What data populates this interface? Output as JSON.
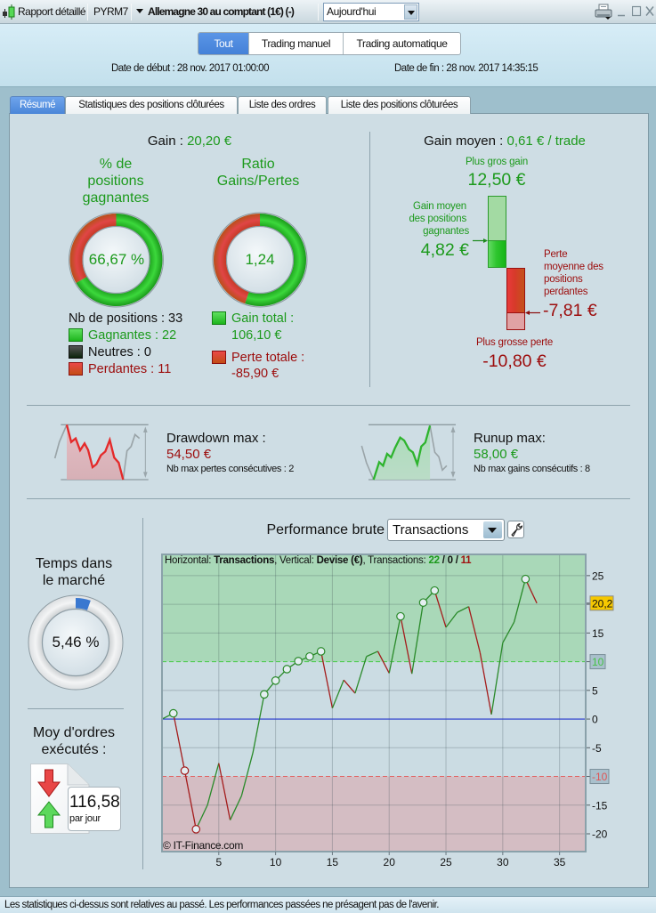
{
  "window": {
    "title": "Rapport détaillé",
    "account": "PYRM7",
    "instrument": "Allemagne 30 au comptant (1€) (-)",
    "period": "Aujourd'hui"
  },
  "filters": {
    "options": [
      "Tout",
      "Trading manuel",
      "Trading automatique"
    ],
    "selected": "Tout"
  },
  "dates": {
    "start_label": "Date de début :",
    "start_value": "28 nov. 2017 01:00:00",
    "end_label": "Date de fin :",
    "end_value": "28 nov. 2017 14:35:15"
  },
  "tabs": [
    {
      "label": "Résumé",
      "active": true
    },
    {
      "label": "Statistiques des positions clôturées",
      "active": false
    },
    {
      "label": "Liste des ordres",
      "active": false
    },
    {
      "label": "Liste des positions clôturées",
      "active": false
    }
  ],
  "gain": {
    "label": "Gain :",
    "value": "20,20 €"
  },
  "win_rate": {
    "title_lines": [
      "% de",
      "positions",
      "gagnantes"
    ],
    "value": "66,67 %",
    "fraction": 0.6667
  },
  "ratio": {
    "title_lines": [
      "Ratio",
      "Gains/Pertes"
    ],
    "value": "1,24",
    "gain_share": 0.5526
  },
  "positions": {
    "total_label": "Nb de positions :",
    "total": "33",
    "winners_label": "Gagnantes :",
    "winners": "22",
    "neutral_label": "Neutres :",
    "neutral": "0",
    "losers_label": "Perdantes :",
    "losers": "11"
  },
  "totals": {
    "gain_label": "Gain total :",
    "gain_value": "106,10 €",
    "loss_label": "Perte totale :",
    "loss_value": "-85,90 €"
  },
  "average": {
    "label": "Gain moyen :",
    "value": "0,61 € / trade",
    "max_gain_label": "Plus gros gain",
    "max_gain_text": "12,50 €",
    "max_gain": 12.5,
    "avg_gain_lines": [
      "Gain moyen",
      "des positions",
      "gagnantes"
    ],
    "avg_gain_text": "4,82 €",
    "avg_gain": 4.82,
    "avg_loss_lines": [
      "Perte",
      "moyenne des",
      "positions",
      "perdantes"
    ],
    "avg_loss_text": "-7,81 €",
    "avg_loss": -7.81,
    "max_loss_label": "Plus grosse perte",
    "max_loss_text": "-10,80 €",
    "max_loss": -10.8
  },
  "drawdown": {
    "label": "Drawdown max :",
    "value": "54,50 €",
    "detail": "Nb max pertes consécutives : 2"
  },
  "runup": {
    "label": "Runup max:",
    "value": "58,00 €",
    "detail": "Nb max gains consécutifs : 8"
  },
  "market_time": {
    "title_lines": [
      "Temps dans",
      "le marché"
    ],
    "value": "5,46 %",
    "fraction": 0.0546
  },
  "orders": {
    "title_lines": [
      "Moy d'ordres",
      "exécutés :"
    ],
    "value": "116,58",
    "unit": "par jour"
  },
  "performance": {
    "mode": "Transactions",
    "header": {
      "h_label": "Horizontal: ",
      "v_label": ", Vertical: ",
      "t_label": ", Transactions: ",
      "wins": "22",
      "sep1": " / ",
      "neutral": "0",
      "sep2": " / ",
      "losses": "11"
    },
    "watermark": "© IT-Finance.com"
  },
  "chart_data": {
    "type": "line",
    "title": "Performance brute",
    "xlabel": "Transactions",
    "ylabel": "Devise (€)",
    "x": [
      0,
      1,
      2,
      3,
      4,
      5,
      6,
      7,
      8,
      9,
      10,
      11,
      12,
      13,
      14,
      15,
      16,
      17,
      18,
      19,
      20,
      21,
      22,
      23,
      24,
      25,
      26,
      27,
      28,
      29,
      30,
      31,
      32,
      33
    ],
    "y": [
      0,
      1.0,
      -9.0,
      -19.2,
      -15.0,
      -7.7,
      -17.6,
      -13.4,
      -5.9,
      4.3,
      6.7,
      8.7,
      10.1,
      10.9,
      11.8,
      1.9,
      6.8,
      4.5,
      10.9,
      11.8,
      8.0,
      17.9,
      7.9,
      20.3,
      22.4,
      16.0,
      18.6,
      19.6,
      11.6,
      0.8,
      13.3,
      16.9,
      24.4,
      20.2
    ],
    "xlim": [
      0,
      37.3
    ],
    "ylim": [
      -23.1,
      28.7
    ],
    "xticks": [
      5,
      10,
      15,
      20,
      25,
      30,
      35
    ],
    "yticks": [
      -20,
      -15,
      -10,
      -5,
      0,
      5,
      10,
      15,
      20,
      25
    ],
    "upper_threshold": 10,
    "lower_threshold": -10,
    "last_value": 20.2,
    "last_value_label": "20,2",
    "grid": true,
    "legend": "none"
  },
  "footer": {
    "disclaimer": "Les statistiques ci-dessus sont relatives au passé. Les performances passées ne présagent pas de l'avenir."
  },
  "colors": {
    "accent": "#4a86d8",
    "gain": "#1c9a1c",
    "loss": "#9c0c0c",
    "line_up": "#2a8a2a",
    "line_down": "#a41c1c",
    "marker_fill": "#e4eef1",
    "chart_mid": "#cbdce3",
    "chart_gain_zone": "#a9d8b8",
    "chart_loss_zone": "#d4bdc3",
    "threshold_up": "#44c844",
    "threshold_down": "#e06262",
    "zero_line": "#2436cc",
    "threshold_box": "#a9c0cc",
    "threshold_up_text": "#45c245",
    "threshold_down_text": "#e05555",
    "last_value_box": "#f6c800",
    "market_time": "#3a78d0"
  }
}
